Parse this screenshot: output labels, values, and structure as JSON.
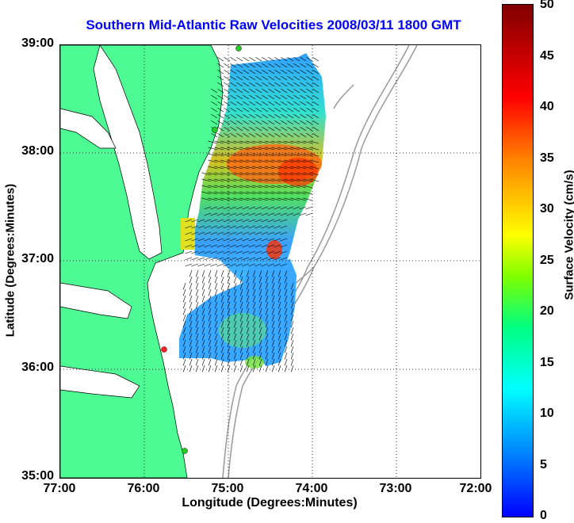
{
  "title": "Southern Mid-Atlantic Raw Velocities 2008/03/11 1800 GMT",
  "xlabel": "Longitude (Degrees:Minutes)",
  "ylabel": "Latitude (Degrees:Minutes)",
  "colorbar_label": "Surface Velocity (cm/s)",
  "x_ticks": [
    "77:00",
    "76:00",
    "75:00",
    "74:00",
    "73:00",
    "72:00"
  ],
  "y_ticks": [
    "39:00",
    "38:00",
    "37:00",
    "36:00",
    "35:00"
  ],
  "colorbar_ticks": [
    "50",
    "45",
    "40",
    "35",
    "30",
    "25",
    "20",
    "15",
    "10",
    "5",
    "0"
  ],
  "colors": {
    "land": "#4dfa94",
    "title": "#0000ff",
    "bathymetry": "#999999",
    "station_green": "#22cc22",
    "station_red": "#ff2222"
  },
  "chart_data": {
    "type": "heatmap",
    "x_range": [
      "77:00",
      "72:00"
    ],
    "y_range": [
      "35:00",
      "39:00"
    ],
    "color_range": [
      0,
      50
    ],
    "grid": "dotted",
    "colormap": "jet"
  }
}
